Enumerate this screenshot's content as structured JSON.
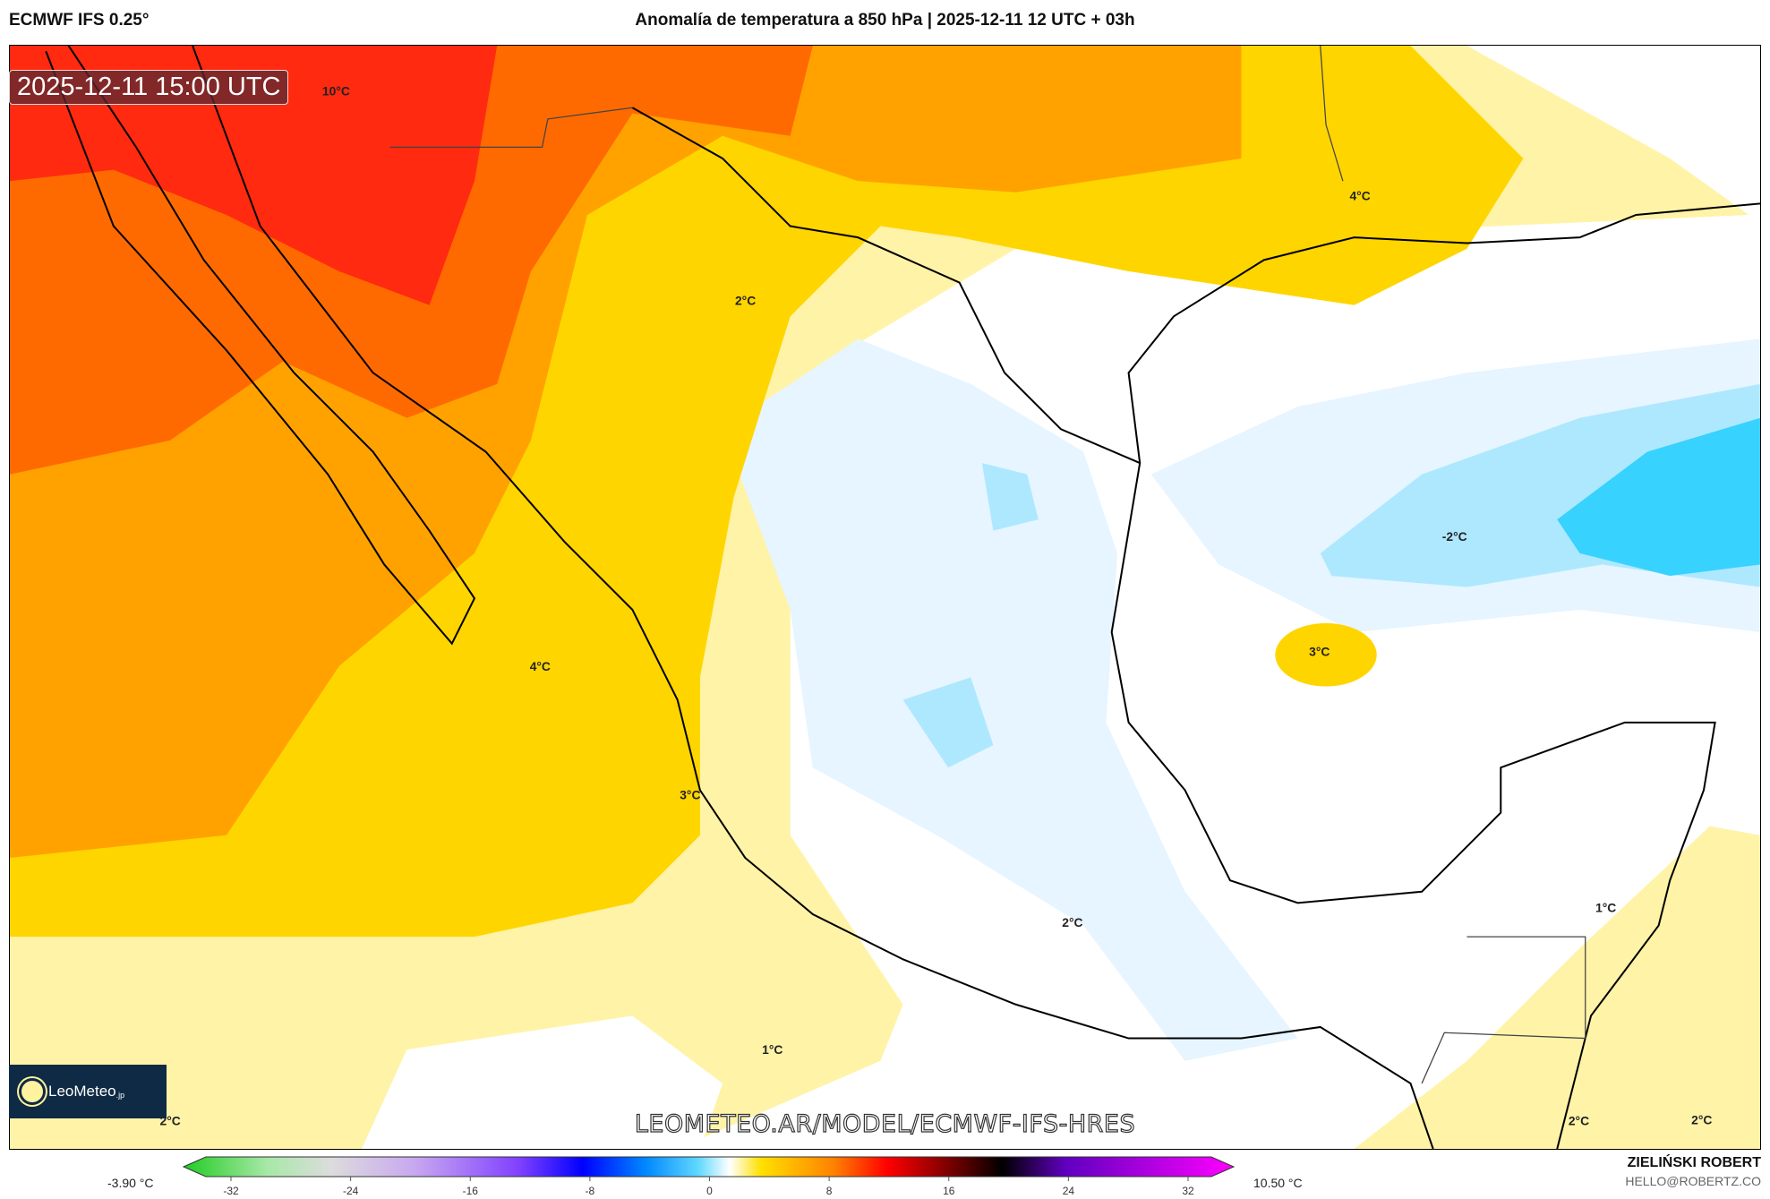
{
  "header": {
    "model": "ECMWF IFS 0.25°",
    "title": "Anomalía de temperatura a 850 hPa | 2025-12-11 12 UTC + 03h"
  },
  "map": {
    "timestamp": "2025-12-11 15:00 UTC",
    "contour_labels": [
      "10°C",
      "4°C",
      "2°C",
      "-2°C",
      "3°C",
      "4°C",
      "3°C",
      "1°C",
      "2°C",
      "1°C",
      "2°C",
      "2°C",
      "2°C"
    ],
    "colors": {
      "red": "#ff2a10",
      "dark_orange": "#ff6a00",
      "orange": "#ffa200",
      "yellow": "#ffd500",
      "pale_yellow": "#fff3a8",
      "light_blue": "#e6f5ff",
      "blue": "#aee8ff",
      "cyan": "#38d2ff"
    }
  },
  "logo": {
    "text": "LeoMeteo",
    "suffix": ".jp"
  },
  "watermark": "LEOMETEO.AR/MODEL/ECMWF-IFS-HRES",
  "colorbar": {
    "min_label": "-3.90 °C",
    "max_label": "10.50 °C",
    "ticks": [
      "-32",
      "-24",
      "-16",
      "-8",
      "0",
      "8",
      "16",
      "24",
      "32"
    ]
  },
  "author": {
    "name": "ZIELIŃSKI ROBERT",
    "email": "HELLO@ROBERTZ.CO"
  }
}
